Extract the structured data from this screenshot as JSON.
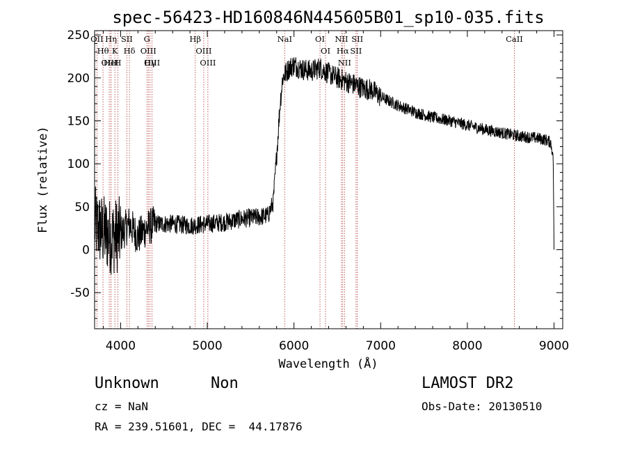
{
  "chart_data": {
    "type": "line",
    "title": "spec-56423-HD160846N445605B01_sp10-035.fits",
    "xlabel": "Wavelength (Å)",
    "ylabel": "Flux (relative)",
    "xlim": [
      3700,
      9100
    ],
    "ylim": [
      -92,
      255
    ],
    "xticks": [
      4000,
      5000,
      6000,
      7000,
      8000,
      9000
    ],
    "yticks": [
      -50,
      0,
      50,
      100,
      150,
      200,
      250
    ],
    "spectrum_anchors": {
      "x": [
        3700,
        3800,
        3900,
        4000,
        4100,
        4200,
        4300,
        4400,
        4600,
        4800,
        5000,
        5200,
        5400,
        5600,
        5700,
        5760,
        5800,
        5840,
        5870,
        5900,
        5950,
        6000,
        6100,
        6200,
        6300,
        6400,
        6500,
        6600,
        6700,
        6800,
        6900,
        7000,
        7200,
        7400,
        7600,
        7800,
        8000,
        8200,
        8400,
        8600,
        8800,
        8900,
        8960,
        8990,
        9000
      ],
      "y": [
        30,
        20,
        15,
        18,
        30,
        15,
        25,
        30,
        30,
        28,
        30,
        32,
        36,
        38,
        40,
        55,
        110,
        170,
        200,
        205,
        212,
        215,
        210,
        208,
        212,
        205,
        200,
        196,
        192,
        188,
        186,
        178,
        168,
        160,
        154,
        150,
        145,
        140,
        136,
        132,
        130,
        128,
        125,
        110,
        0
      ]
    },
    "spectral_lines": [
      {
        "name": "OII",
        "x": 3727
      },
      {
        "name": "Hθ",
        "x": 3797
      },
      {
        "name": "OIII",
        "x": 3869
      },
      {
        "name": "HeI",
        "x": 3889
      },
      {
        "name": "Hη",
        "x": 3889
      },
      {
        "name": "K",
        "x": 3934
      },
      {
        "name": "H",
        "x": 3968
      },
      {
        "name": "SII",
        "x": 4072
      },
      {
        "name": "Hδ",
        "x": 4102
      },
      {
        "name": "G",
        "x": 4304
      },
      {
        "name": "OIII",
        "x": 4320
      },
      {
        "name": "Hγ",
        "x": 4340
      },
      {
        "name": "OIII",
        "x": 4363
      },
      {
        "name": "Hβ",
        "x": 4861
      },
      {
        "name": "OIII",
        "x": 4959
      },
      {
        "name": "OIII",
        "x": 5007
      },
      {
        "name": "NaI",
        "x": 5893
      },
      {
        "name": "OI",
        "x": 6300
      },
      {
        "name": "OI",
        "x": 6364
      },
      {
        "name": "NII",
        "x": 6548
      },
      {
        "name": "Hα",
        "x": 6563
      },
      {
        "name": "NII",
        "x": 6583
      },
      {
        "name": "SII",
        "x": 6716
      },
      {
        "name": "SII",
        "x": 6731
      },
      {
        "name": "CaII",
        "x": 8542
      }
    ]
  },
  "info": {
    "class": "Unknown",
    "subclass": "Non",
    "cz": "cz = NaN",
    "radec": "RA = 239.51601, DEC =  44.17876",
    "survey": "LAMOST DR2",
    "obsdate": "Obs-Date: 20130510"
  }
}
